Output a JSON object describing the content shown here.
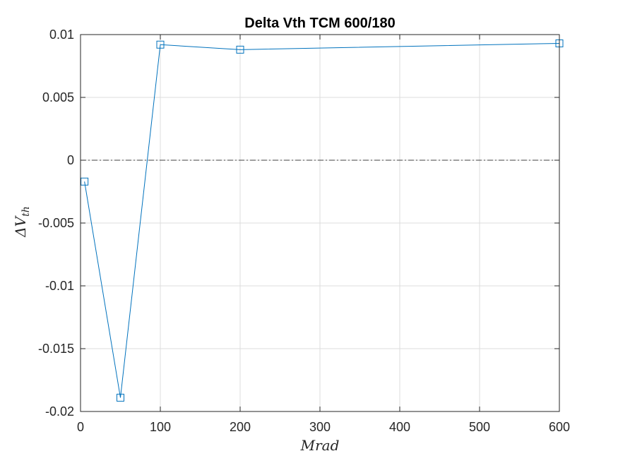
{
  "chart_data": {
    "type": "line",
    "title": "Delta Vth TCM 600/180",
    "xlabel": "Mrad",
    "ylabel_main": "ΔV",
    "ylabel_sub": "th",
    "xlim": [
      0,
      600
    ],
    "ylim": [
      -0.02,
      0.01
    ],
    "xticks": [
      0,
      100,
      200,
      300,
      400,
      500,
      600
    ],
    "xtick_labels": [
      "0",
      "100",
      "200",
      "300",
      "400",
      "500",
      "600"
    ],
    "yticks": [
      0.01,
      0.005,
      0,
      -0.005,
      -0.01,
      -0.015,
      -0.02
    ],
    "ytick_labels": [
      "0.01",
      "0.005",
      "0",
      "-0.005",
      "-0.01",
      "-0.015",
      "-0.02"
    ],
    "grid": true,
    "reference_line": {
      "y": 0,
      "style": "dash-dot",
      "color": "#404040"
    },
    "series": [
      {
        "color": "#0072BD",
        "marker": "square",
        "x": [
          5,
          50,
          100,
          200,
          600
        ],
        "y": [
          -0.0017,
          -0.0189,
          0.0092,
          0.0088,
          0.0093
        ]
      }
    ]
  }
}
